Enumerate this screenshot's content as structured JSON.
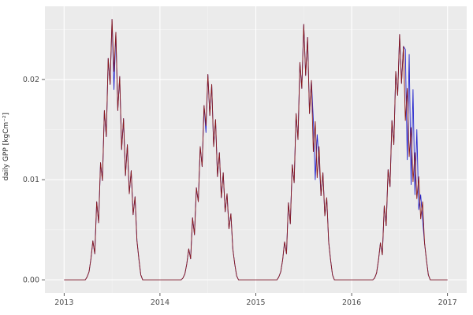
{
  "figure": {
    "background": "#FFFFFF",
    "panel_background": "#EBEBEB",
    "grid_major_color": "#FFFFFF",
    "grid_minor_color": "#F5F5F5",
    "tick_text_color": "#4D4D4D",
    "tick_mark_color": "#333333"
  },
  "chart_data": {
    "type": "line",
    "title": "",
    "subtitle": "",
    "xlabel": "",
    "ylabel": "daily GPP [kgCm⁻²]",
    "legend": "none",
    "grid": true,
    "xlim": [
      2012.8,
      2017.2
    ],
    "ylim": [
      -0.0013,
      0.0273
    ],
    "x_ticks": [
      2013,
      2014,
      2015,
      2016,
      2017
    ],
    "x_tick_labels": [
      "2013",
      "2014",
      "2015",
      "2016",
      "2017"
    ],
    "x_minor_ticks": [
      2013.5,
      2014.5,
      2015.5,
      2016.5
    ],
    "y_ticks": [
      0,
      0.01,
      0.02
    ],
    "y_tick_labels": [
      "0.00",
      "0.01",
      "0.02"
    ],
    "y_minor_ticks": [
      0.005,
      0.015,
      0.025
    ],
    "x_start": 2013.0,
    "x_step": 0.02,
    "series": [
      {
        "name": "blue-series",
        "color": "#2323CD",
        "values": [
          0,
          0,
          0,
          0,
          0,
          0,
          0,
          0,
          0,
          0,
          0,
          0,
          0.0003,
          0.0008,
          0.0021,
          0.0039,
          0.0026,
          0.0078,
          0.0057,
          0.0117,
          0.0099,
          0.0169,
          0.0143,
          0.0221,
          0.0195,
          0.026,
          0.019,
          0.0247,
          0.0169,
          0.0203,
          0.013,
          0.0161,
          0.0104,
          0.0135,
          0.0086,
          0.0109,
          0.0065,
          0.0083,
          0.0039,
          0.0021,
          0.0005,
          0,
          0,
          0,
          0,
          0,
          0,
          0,
          0,
          0,
          0,
          0,
          0,
          0,
          0,
          0,
          0,
          0,
          0,
          0,
          0,
          0,
          0.0002,
          0.0006,
          0.0016,
          0.0031,
          0.0021,
          0.0062,
          0.0045,
          0.0092,
          0.0078,
          0.0133,
          0.0113,
          0.0174,
          0.0147,
          0.0205,
          0.0164,
          0.0195,
          0.0133,
          0.016,
          0.0103,
          0.0127,
          0.0082,
          0.0107,
          0.0068,
          0.0086,
          0.0051,
          0.0066,
          0.0031,
          0.0016,
          0.0004,
          0,
          0,
          0,
          0,
          0,
          0,
          0,
          0,
          0,
          0,
          0,
          0,
          0,
          0,
          0,
          0,
          0,
          0,
          0,
          0,
          0,
          0.0003,
          0.0008,
          0.002,
          0.0038,
          0.0026,
          0.0077,
          0.0056,
          0.0115,
          0.0097,
          0.0166,
          0.014,
          0.0217,
          0.0191,
          0.0255,
          0.0204,
          0.0242,
          0.0166,
          0.0199,
          0.016,
          0.01,
          0.0145,
          0.012,
          0.0084,
          0.0107,
          0.0064,
          0.0082,
          0.0038,
          0.002,
          0.0005,
          0,
          0,
          0,
          0,
          0,
          0,
          0,
          0,
          0,
          0,
          0,
          0,
          0,
          0,
          0,
          0,
          0,
          0,
          0,
          0,
          0,
          0.0002,
          0.0007,
          0.002,
          0.0037,
          0.0025,
          0.0074,
          0.0054,
          0.011,
          0.0093,
          0.0159,
          0.0135,
          0.0208,
          0.0184,
          0.0245,
          0.0196,
          0.0233,
          0.023,
          0.012,
          0.0225,
          0.0095,
          0.019,
          0.0085,
          0.015,
          0.007,
          0.0085,
          0.006,
          0.0037,
          0.002,
          0.0005,
          0,
          0,
          0,
          0,
          0,
          0,
          0,
          0,
          0,
          0
        ]
      },
      {
        "name": "dark-red-series",
        "color": "#8B1A1A",
        "values": [
          0,
          0,
          0,
          0,
          0,
          0,
          0,
          0,
          0,
          0,
          0,
          0,
          0.0003,
          0.0008,
          0.0021,
          0.0039,
          0.0026,
          0.0078,
          0.0057,
          0.0117,
          0.0099,
          0.0169,
          0.0143,
          0.0221,
          0.0195,
          0.026,
          0.0208,
          0.0247,
          0.0169,
          0.0203,
          0.013,
          0.0161,
          0.0104,
          0.0135,
          0.0086,
          0.0109,
          0.0065,
          0.0083,
          0.0039,
          0.0021,
          0.0005,
          0,
          0,
          0,
          0,
          0,
          0,
          0,
          0,
          0,
          0,
          0,
          0,
          0,
          0,
          0,
          0,
          0,
          0,
          0,
          0,
          0,
          0.0002,
          0.0006,
          0.0016,
          0.0031,
          0.0021,
          0.0062,
          0.0045,
          0.0092,
          0.0078,
          0.0133,
          0.0113,
          0.0174,
          0.0154,
          0.0205,
          0.0164,
          0.0195,
          0.0133,
          0.016,
          0.0103,
          0.0127,
          0.0082,
          0.0107,
          0.0068,
          0.0086,
          0.0051,
          0.0066,
          0.0031,
          0.0016,
          0.0004,
          0,
          0,
          0,
          0,
          0,
          0,
          0,
          0,
          0,
          0,
          0,
          0,
          0,
          0,
          0,
          0,
          0,
          0,
          0,
          0,
          0,
          0.0003,
          0.0008,
          0.002,
          0.0038,
          0.0026,
          0.0077,
          0.0056,
          0.0115,
          0.0097,
          0.0166,
          0.014,
          0.0217,
          0.0191,
          0.0255,
          0.0204,
          0.0242,
          0.0166,
          0.0199,
          0.0128,
          0.0158,
          0.0102,
          0.0133,
          0.0084,
          0.0107,
          0.0064,
          0.0082,
          0.0038,
          0.002,
          0.0005,
          0,
          0,
          0,
          0,
          0,
          0,
          0,
          0,
          0,
          0,
          0,
          0,
          0,
          0,
          0,
          0,
          0,
          0,
          0,
          0,
          0,
          0.0002,
          0.0007,
          0.002,
          0.0037,
          0.0025,
          0.0074,
          0.0054,
          0.011,
          0.0093,
          0.0159,
          0.0135,
          0.0208,
          0.0184,
          0.0245,
          0.0196,
          0.0233,
          0.0159,
          0.0191,
          0.0123,
          0.0152,
          0.0098,
          0.0127,
          0.0081,
          0.0103,
          0.0061,
          0.0078,
          0.0037,
          0.002,
          0.0005,
          0,
          0,
          0,
          0,
          0,
          0,
          0,
          0,
          0,
          0
        ]
      }
    ]
  }
}
